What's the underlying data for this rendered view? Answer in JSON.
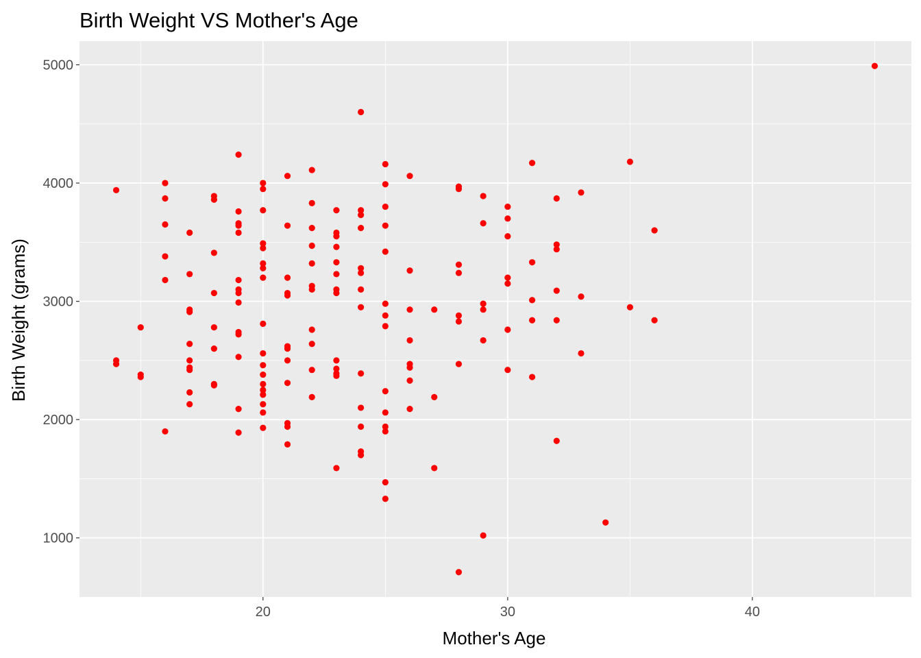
{
  "chart_data": {
    "type": "scatter",
    "title": "Birth Weight VS Mother's Age",
    "xlabel": "Mother's Age",
    "ylabel": "Birth Weight (grams)",
    "xlim": [
      12.5,
      46.5
    ],
    "ylim": [
      500,
      5200
    ],
    "x_ticks": [
      20,
      30,
      40
    ],
    "x_tick_labels": [
      "20",
      "30",
      "40"
    ],
    "y_ticks": [
      1000,
      2000,
      3000,
      4000,
      5000
    ],
    "y_tick_labels": [
      "1000",
      "2000",
      "3000",
      "4000",
      "5000"
    ],
    "x_minor": [
      15,
      25,
      35,
      45
    ],
    "y_minor": [
      1500,
      2500,
      3500,
      4500
    ],
    "grid": true,
    "point_color": "#ff0000",
    "panel_background": "#ebebeb",
    "grid_color": "#ffffff",
    "points": [
      [
        14,
        3940
      ],
      [
        14,
        2500
      ],
      [
        14,
        2470
      ],
      [
        15,
        2780
      ],
      [
        15,
        2380
      ],
      [
        15,
        2360
      ],
      [
        16,
        4000
      ],
      [
        16,
        3870
      ],
      [
        16,
        3650
      ],
      [
        16,
        3380
      ],
      [
        16,
        3180
      ],
      [
        16,
        1900
      ],
      [
        17,
        3580
      ],
      [
        17,
        3230
      ],
      [
        17,
        2930
      ],
      [
        17,
        2910
      ],
      [
        17,
        2640
      ],
      [
        17,
        2500
      ],
      [
        17,
        2440
      ],
      [
        17,
        2420
      ],
      [
        17,
        2230
      ],
      [
        17,
        2130
      ],
      [
        18,
        3890
      ],
      [
        18,
        3860
      ],
      [
        18,
        3410
      ],
      [
        18,
        3070
      ],
      [
        18,
        2780
      ],
      [
        18,
        2600
      ],
      [
        18,
        2300
      ],
      [
        18,
        2290
      ],
      [
        19,
        4240
      ],
      [
        19,
        3760
      ],
      [
        19,
        3660
      ],
      [
        19,
        3640
      ],
      [
        19,
        3580
      ],
      [
        19,
        3180
      ],
      [
        19,
        3100
      ],
      [
        19,
        3070
      ],
      [
        19,
        2990
      ],
      [
        19,
        2740
      ],
      [
        19,
        2720
      ],
      [
        19,
        2530
      ],
      [
        19,
        2090
      ],
      [
        19,
        1890
      ],
      [
        20,
        4000
      ],
      [
        20,
        3950
      ],
      [
        20,
        3770
      ],
      [
        20,
        3490
      ],
      [
        20,
        3450
      ],
      [
        20,
        3320
      ],
      [
        20,
        3280
      ],
      [
        20,
        3200
      ],
      [
        20,
        2810
      ],
      [
        20,
        2560
      ],
      [
        20,
        2460
      ],
      [
        20,
        2380
      ],
      [
        20,
        2300
      ],
      [
        20,
        2250
      ],
      [
        20,
        2210
      ],
      [
        20,
        2130
      ],
      [
        20,
        2060
      ],
      [
        20,
        1930
      ],
      [
        21,
        4060
      ],
      [
        21,
        3640
      ],
      [
        21,
        3200
      ],
      [
        21,
        3070
      ],
      [
        21,
        3050
      ],
      [
        21,
        2620
      ],
      [
        21,
        2600
      ],
      [
        21,
        2500
      ],
      [
        21,
        2310
      ],
      [
        21,
        1970
      ],
      [
        21,
        1940
      ],
      [
        21,
        1790
      ],
      [
        22,
        4110
      ],
      [
        22,
        3830
      ],
      [
        22,
        3620
      ],
      [
        22,
        3470
      ],
      [
        22,
        3320
      ],
      [
        22,
        3130
      ],
      [
        22,
        3100
      ],
      [
        22,
        2760
      ],
      [
        22,
        2640
      ],
      [
        22,
        2420
      ],
      [
        22,
        2190
      ],
      [
        23,
        3770
      ],
      [
        23,
        3580
      ],
      [
        23,
        3550
      ],
      [
        23,
        3460
      ],
      [
        23,
        3330
      ],
      [
        23,
        3230
      ],
      [
        23,
        3100
      ],
      [
        23,
        3070
      ],
      [
        23,
        2500
      ],
      [
        23,
        2430
      ],
      [
        23,
        2390
      ],
      [
        23,
        2370
      ],
      [
        23,
        1590
      ],
      [
        24,
        4600
      ],
      [
        24,
        3770
      ],
      [
        24,
        3730
      ],
      [
        24,
        3620
      ],
      [
        24,
        3280
      ],
      [
        24,
        3240
      ],
      [
        24,
        3100
      ],
      [
        24,
        2950
      ],
      [
        24,
        2390
      ],
      [
        24,
        2100
      ],
      [
        24,
        1940
      ],
      [
        24,
        1730
      ],
      [
        24,
        1700
      ],
      [
        25,
        4160
      ],
      [
        25,
        3990
      ],
      [
        25,
        3800
      ],
      [
        25,
        3640
      ],
      [
        25,
        3420
      ],
      [
        25,
        2980
      ],
      [
        25,
        2880
      ],
      [
        25,
        2790
      ],
      [
        25,
        2240
      ],
      [
        25,
        2060
      ],
      [
        25,
        1940
      ],
      [
        25,
        1900
      ],
      [
        25,
        1470
      ],
      [
        25,
        1330
      ],
      [
        26,
        4060
      ],
      [
        26,
        3260
      ],
      [
        26,
        2930
      ],
      [
        26,
        2670
      ],
      [
        26,
        2470
      ],
      [
        26,
        2440
      ],
      [
        26,
        2330
      ],
      [
        26,
        2090
      ],
      [
        27,
        2930
      ],
      [
        27,
        2190
      ],
      [
        27,
        1590
      ],
      [
        28,
        3970
      ],
      [
        28,
        3950
      ],
      [
        28,
        3310
      ],
      [
        28,
        3240
      ],
      [
        28,
        2880
      ],
      [
        28,
        2830
      ],
      [
        28,
        2470
      ],
      [
        28,
        710
      ],
      [
        29,
        3890
      ],
      [
        29,
        3660
      ],
      [
        29,
        2980
      ],
      [
        29,
        2930
      ],
      [
        29,
        2670
      ],
      [
        29,
        1020
      ],
      [
        30,
        3800
      ],
      [
        30,
        3700
      ],
      [
        30,
        3550
      ],
      [
        30,
        3200
      ],
      [
        30,
        3150
      ],
      [
        30,
        2760
      ],
      [
        30,
        2420
      ],
      [
        31,
        4170
      ],
      [
        31,
        3330
      ],
      [
        31,
        3010
      ],
      [
        31,
        2840
      ],
      [
        31,
        2360
      ],
      [
        32,
        3870
      ],
      [
        32,
        3480
      ],
      [
        32,
        3440
      ],
      [
        32,
        3090
      ],
      [
        32,
        2840
      ],
      [
        32,
        1820
      ],
      [
        33,
        3920
      ],
      [
        33,
        3040
      ],
      [
        33,
        2560
      ],
      [
        34,
        1130
      ],
      [
        35,
        4180
      ],
      [
        35,
        2950
      ],
      [
        36,
        3600
      ],
      [
        36,
        2840
      ],
      [
        45,
        4990
      ]
    ]
  }
}
